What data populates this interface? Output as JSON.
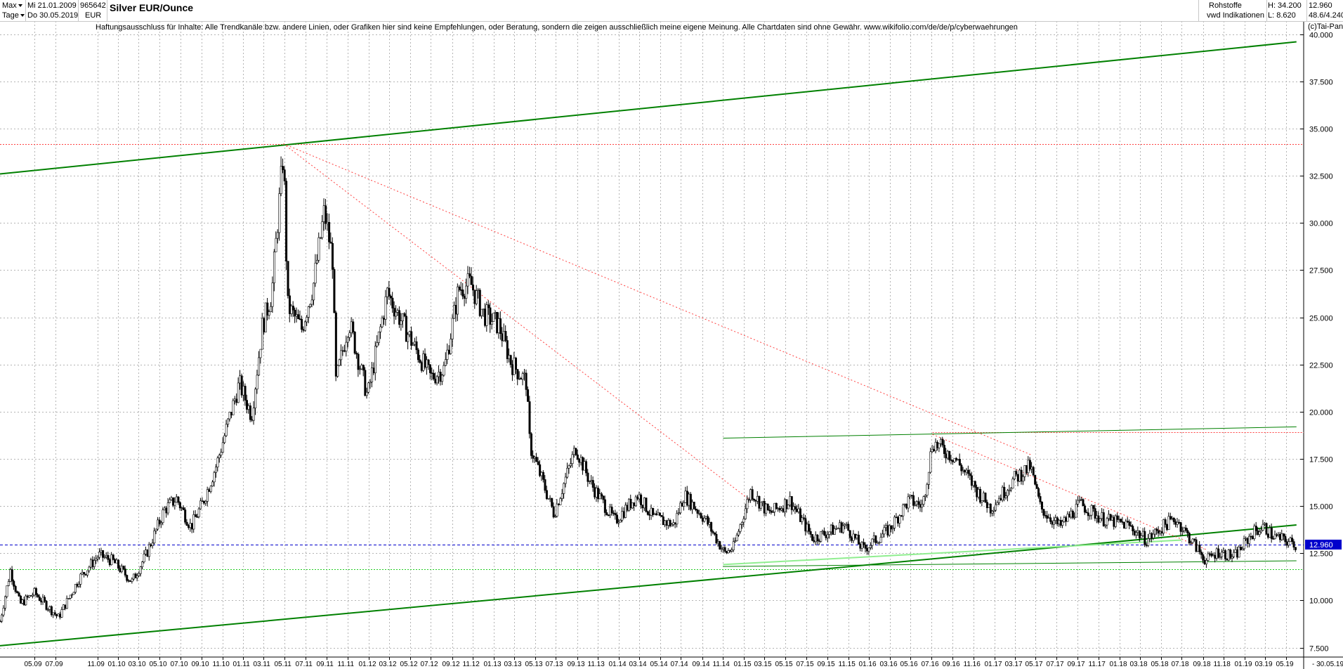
{
  "header": {
    "range": "Max",
    "period": "Tage",
    "date_from": "Mi 21.01.2009",
    "date_to": "Do 30.05.2019",
    "id": "965642",
    "currency": "EUR",
    "title": "Silver EUR/Ounce",
    "category": "Rohstoffe",
    "provider": "vwd Indikationen",
    "high": "H: 34.200",
    "low": "L: 8.620",
    "last": "12.960",
    "stats": "48.6/4.240"
  },
  "disclaimer": "Haftungsausschluss für Inhalte: Alle Trendkanäle bzw. andere Linien, oder Grafiken hier sind keine Empfehlungen, oder Beratung, sondern die zeigen ausschließlich meine eigene Meinung. Alle Chartdaten sind ohne Gewähr.  www.wikifolio.com/de/de/p/cyberwaehrungen",
  "copyright": "(c)Tai-Pan",
  "colors": {
    "candle_up": "#ffffff",
    "candle_down": "#000000",
    "wick": "#000000",
    "trend_green": "#008000",
    "light_green": "#90ee90",
    "red_dotted": "#ff4040",
    "blue_dashed": "#0000cc",
    "grid": "#b4b4b4",
    "last_price_bg": "#0000cc"
  },
  "chart_data": {
    "type": "candlestick",
    "title": "Silver EUR/Ounce",
    "y_axis": {
      "ticks": [
        "7.500",
        "10.000",
        "12.500",
        "15.000",
        "17.500",
        "20.000",
        "22.500",
        "25.000",
        "27.500",
        "30.000",
        "32.500",
        "35.000",
        "37.500",
        "40.000"
      ],
      "ylim": [
        7,
        40.7
      ],
      "last_label": "12.960"
    },
    "x_axis": {
      "ticks": [
        "05.09",
        "07.09",
        "11.09",
        "01.10",
        "03.10",
        "05.10",
        "07.10",
        "09.10",
        "11.10",
        "01.11",
        "03.11",
        "05.11",
        "07.11",
        "09.11",
        "11.11",
        "01.12",
        "03.12",
        "05.12",
        "07.12",
        "09.12",
        "11.12",
        "01.13",
        "03.13",
        "05.13",
        "07.13",
        "09.13",
        "11.13",
        "01.14",
        "03.14",
        "05.14",
        "07.14",
        "09.14",
        "11.14",
        "01.15",
        "03.15",
        "05.15",
        "07.15",
        "09.15",
        "11.15",
        "01.16",
        "03.16",
        "05.16",
        "07.16",
        "09.16",
        "11.16",
        "01.17",
        "03.17",
        "05.17",
        "07.17",
        "09.17",
        "11.17",
        "01.18",
        "03.18",
        "05.18",
        "07.18",
        "09.18",
        "11.18",
        "01.19",
        "03.19",
        "05.19"
      ],
      "start": "2009-05-01",
      "end": "2019-05-30",
      "end_label": "30.05.19",
      "grid": true
    },
    "series": [
      {
        "type": "price",
        "points": [
          [
            "2009-01-21",
            8.9
          ],
          [
            "2009-02-20",
            11.6
          ],
          [
            "2009-03-20",
            9.8
          ],
          [
            "2009-05-01",
            10.4
          ],
          [
            "2009-07-10",
            9.1
          ],
          [
            "2009-09-10",
            11.2
          ],
          [
            "2009-11-05",
            12.4
          ],
          [
            "2009-12-15",
            12.1
          ],
          [
            "2010-02-10",
            11.0
          ],
          [
            "2010-03-25",
            12.5
          ],
          [
            "2010-05-15",
            14.8
          ],
          [
            "2010-06-20",
            15.4
          ],
          [
            "2010-08-01",
            13.9
          ],
          [
            "2010-09-05",
            15.2
          ],
          [
            "2010-10-15",
            17.2
          ],
          [
            "2010-11-20",
            19.6
          ],
          [
            "2010-12-20",
            21.5
          ],
          [
            "2011-01-25",
            19.8
          ],
          [
            "2011-02-25",
            24.5
          ],
          [
            "2011-03-25",
            26.3
          ],
          [
            "2011-04-28",
            33.8
          ],
          [
            "2011-05-10",
            25.6
          ],
          [
            "2011-06-20",
            24.4
          ],
          [
            "2011-07-25",
            26.8
          ],
          [
            "2011-08-25",
            30.6
          ],
          [
            "2011-09-20",
            27.9
          ],
          [
            "2011-09-26",
            21.4
          ],
          [
            "2011-11-05",
            24.8
          ],
          [
            "2011-12-29",
            20.8
          ],
          [
            "2012-02-25",
            26.3
          ],
          [
            "2012-05-15",
            23.4
          ],
          [
            "2012-07-01",
            21.8
          ],
          [
            "2012-08-10",
            22.3
          ],
          [
            "2012-09-20",
            26.5
          ],
          [
            "2012-10-25",
            26.8
          ],
          [
            "2012-12-01",
            25.2
          ],
          [
            "2013-01-15",
            24.6
          ],
          [
            "2013-02-20",
            22.6
          ],
          [
            "2013-04-05",
            21.6
          ],
          [
            "2013-04-16",
            18.2
          ],
          [
            "2013-06-25",
            14.6
          ],
          [
            "2013-08-28",
            18.1
          ],
          [
            "2013-10-10",
            16.2
          ],
          [
            "2013-12-20",
            14.2
          ],
          [
            "2014-02-25",
            15.6
          ],
          [
            "2014-04-10",
            14.4
          ],
          [
            "2014-06-10",
            14.0
          ],
          [
            "2014-07-10",
            15.6
          ],
          [
            "2014-09-10",
            14.3
          ],
          [
            "2014-11-05",
            12.5
          ],
          [
            "2014-12-01",
            12.8
          ],
          [
            "2015-01-20",
            15.8
          ],
          [
            "2015-03-15",
            14.6
          ],
          [
            "2015-05-15",
            15.3
          ],
          [
            "2015-07-20",
            13.3
          ],
          [
            "2015-09-01",
            13.6
          ],
          [
            "2015-10-20",
            14.0
          ],
          [
            "2015-12-15",
            12.7
          ],
          [
            "2016-03-01",
            13.8
          ],
          [
            "2016-04-25",
            15.3
          ],
          [
            "2016-06-05",
            15.0
          ],
          [
            "2016-07-04",
            18.4
          ],
          [
            "2016-09-05",
            17.6
          ],
          [
            "2016-11-15",
            15.7
          ],
          [
            "2016-12-20",
            14.9
          ],
          [
            "2017-02-25",
            16.4
          ],
          [
            "2017-04-15",
            17.1
          ],
          [
            "2017-05-15",
            14.9
          ],
          [
            "2017-07-10",
            13.9
          ],
          [
            "2017-09-08",
            15.1
          ],
          [
            "2017-11-15",
            14.3
          ],
          [
            "2018-01-25",
            14.0
          ],
          [
            "2018-03-20",
            13.2
          ],
          [
            "2018-05-20",
            14.1
          ],
          [
            "2018-06-15",
            14.3
          ],
          [
            "2018-08-01",
            13.1
          ],
          [
            "2018-09-10",
            12.1
          ],
          [
            "2018-10-15",
            12.6
          ],
          [
            "2018-12-01",
            12.3
          ],
          [
            "2019-01-25",
            13.6
          ],
          [
            "2019-02-25",
            13.9
          ],
          [
            "2019-03-25",
            13.4
          ],
          [
            "2019-04-25",
            13.2
          ],
          [
            "2019-05-30",
            12.96
          ]
        ]
      }
    ],
    "lines": [
      {
        "name": "upper-channel",
        "style": "thick-green",
        "from": [
          "2009-01-21",
          32.6
        ],
        "to": [
          "2019-06-01",
          39.6
        ]
      },
      {
        "name": "lower-channel",
        "style": "thick-green",
        "from": [
          "2009-01-21",
          7.6
        ],
        "to": [
          "2019-06-01",
          14.0
        ]
      },
      {
        "name": "range-top",
        "style": "thin-green",
        "from": [
          "2014-11-01",
          18.6
        ],
        "to": [
          "2019-06-01",
          19.2
        ]
      },
      {
        "name": "range-bottom",
        "style": "thin-green",
        "from": [
          "2014-11-01",
          11.8
        ],
        "to": [
          "2019-06-01",
          12.1
        ]
      },
      {
        "name": "support-light",
        "style": "light-green",
        "from": [
          "2014-11-01",
          11.9
        ],
        "to": [
          "2018-07-01",
          13.2
        ]
      },
      {
        "name": "down-trend-long",
        "style": "red-dotted",
        "from": [
          "2011-04-28",
          34.2
        ],
        "to": [
          "2017-04-20",
          17.7
        ]
      },
      {
        "name": "down-trend-short",
        "style": "red-dotted",
        "from": [
          "2011-04-28",
          34.2
        ],
        "to": [
          "2015-01-20",
          15.3
        ]
      },
      {
        "name": "down-trend-recent",
        "style": "red-dotted",
        "from": [
          "2016-07-04",
          18.8
        ],
        "to": [
          "2018-09-10",
          12.7
        ]
      },
      {
        "name": "high-level",
        "style": "red-dotted-h",
        "y": 34.2
      },
      {
        "name": "level-19",
        "style": "red-dotted-h-partial",
        "y": 18.9,
        "from_date": "2016-07-04"
      },
      {
        "name": "low-level",
        "style": "green-dotted-h",
        "y": 11.65
      },
      {
        "name": "last-price",
        "style": "blue-dashed-h",
        "y": 12.96
      }
    ]
  }
}
